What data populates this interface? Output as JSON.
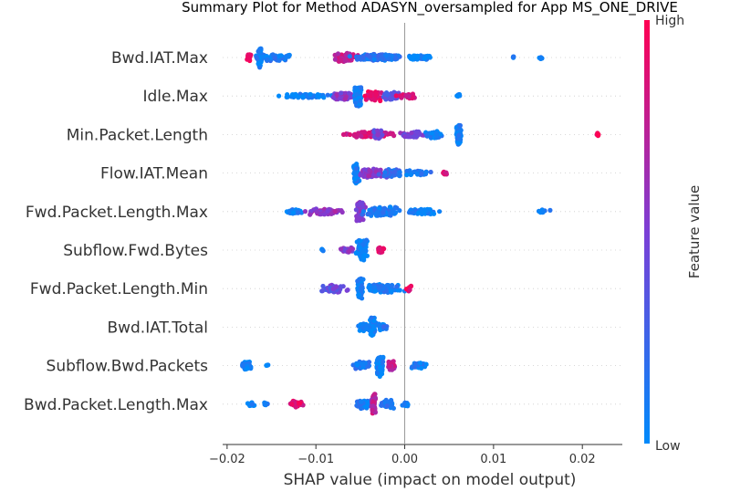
{
  "chart_data": {
    "type": "scatter",
    "subtype": "shap-beeswarm",
    "title": "Summary Plot for Method ADASYN_oversampled for App MS_ONE_DRIVE",
    "xlabel": "SHAP value (impact on model output)",
    "xlim": [
      -0.0205,
      0.0245
    ],
    "xticks": [
      -0.02,
      -0.01,
      0.0,
      0.01,
      0.02
    ],
    "xtick_labels": [
      "−0.02",
      "−0.01",
      "0.00",
      "0.01",
      "0.02"
    ],
    "zero_line": true,
    "grid": false,
    "colorbar": {
      "title": "Feature value",
      "high_label": "High",
      "low_label": "Low",
      "low_color": "#008afb",
      "high_color": "#ff0052"
    },
    "features": [
      {
        "name": "Bwd.IAT.Max",
        "clusters": [
          {
            "x": -0.0163,
            "spread": 0.00025,
            "n": 55,
            "height": 1.0,
            "color": 0.05
          },
          {
            "x": -0.0175,
            "spread": 0.0004,
            "n": 18,
            "height": 0.35,
            "color": 0.95
          },
          {
            "x": -0.0148,
            "spread": 0.0025,
            "n": 60,
            "height": 0.3,
            "color": 0.1
          },
          {
            "x": -0.0065,
            "spread": 0.0018,
            "n": 45,
            "height": 0.4,
            "color": 0.75
          },
          {
            "x": -0.003,
            "spread": 0.0035,
            "n": 140,
            "height": 0.3,
            "color": 0.15
          },
          {
            "x": 0.0015,
            "spread": 0.0018,
            "n": 40,
            "height": 0.22,
            "color": 0.05
          },
          {
            "x": 0.0122,
            "spread": 0.0001,
            "n": 4,
            "height": 0.1,
            "color": 0.05
          },
          {
            "x": 0.0153,
            "spread": 0.0003,
            "n": 7,
            "height": 0.14,
            "color": 0.05
          }
        ]
      },
      {
        "name": "Idle.Max",
        "clusters": [
          {
            "x": -0.0112,
            "spread": 0.0045,
            "n": 70,
            "height": 0.18,
            "color": 0.05
          },
          {
            "x": -0.0068,
            "spread": 0.0018,
            "n": 55,
            "height": 0.4,
            "color": 0.55
          },
          {
            "x": -0.0053,
            "spread": 0.0005,
            "n": 85,
            "height": 1.0,
            "color": 0.05
          },
          {
            "x": -0.0035,
            "spread": 0.0012,
            "n": 40,
            "height": 0.45,
            "color": 0.9
          },
          {
            "x": -0.0015,
            "spread": 0.0016,
            "n": 55,
            "height": 0.4,
            "color": 0.35
          },
          {
            "x": 0.0003,
            "spread": 0.0018,
            "n": 30,
            "height": 0.22,
            "color": 0.85
          },
          {
            "x": 0.006,
            "spread": 0.0003,
            "n": 8,
            "height": 0.2,
            "color": 0.05
          }
        ]
      },
      {
        "name": "Min.Packet.Length",
        "clusters": [
          {
            "x": -0.004,
            "spread": 0.0035,
            "n": 80,
            "height": 0.28,
            "color": 0.85
          },
          {
            "x": -0.003,
            "spread": 0.0007,
            "n": 30,
            "height": 0.5,
            "color": 0.45
          },
          {
            "x": 0.001,
            "spread": 0.0018,
            "n": 50,
            "height": 0.28,
            "color": 0.5
          },
          {
            "x": 0.0033,
            "spread": 0.0012,
            "n": 40,
            "height": 0.35,
            "color": 0.05
          },
          {
            "x": 0.0061,
            "spread": 0.00035,
            "n": 85,
            "height": 1.0,
            "color": 0.05
          },
          {
            "x": 0.0218,
            "spread": 0.00045,
            "n": 8,
            "height": 0.16,
            "color": 0.95
          }
        ]
      },
      {
        "name": "Flow.IAT.Mean",
        "clusters": [
          {
            "x": -0.0055,
            "spread": 0.0004,
            "n": 85,
            "height": 1.0,
            "color": 0.05
          },
          {
            "x": -0.0038,
            "spread": 0.0018,
            "n": 70,
            "height": 0.45,
            "color": 0.55
          },
          {
            "x": -0.0015,
            "spread": 0.0015,
            "n": 45,
            "height": 0.35,
            "color": 0.2
          },
          {
            "x": 0.0015,
            "spread": 0.0018,
            "n": 35,
            "height": 0.24,
            "color": 0.1
          },
          {
            "x": 0.0045,
            "spread": 0.0004,
            "n": 9,
            "height": 0.18,
            "color": 0.92
          }
        ]
      },
      {
        "name": "Fwd.Packet.Length.Max",
        "clusters": [
          {
            "x": -0.0125,
            "spread": 0.0015,
            "n": 35,
            "height": 0.2,
            "color": 0.05
          },
          {
            "x": -0.009,
            "spread": 0.0025,
            "n": 60,
            "height": 0.3,
            "color": 0.6
          },
          {
            "x": -0.005,
            "spread": 0.0006,
            "n": 90,
            "height": 1.0,
            "color": 0.55
          },
          {
            "x": -0.0025,
            "spread": 0.0025,
            "n": 80,
            "height": 0.45,
            "color": 0.1
          },
          {
            "x": 0.002,
            "spread": 0.0022,
            "n": 55,
            "height": 0.25,
            "color": 0.05
          },
          {
            "x": 0.0155,
            "spread": 0.001,
            "n": 12,
            "height": 0.18,
            "color": 0.05
          }
        ]
      },
      {
        "name": "Subflow.Fwd.Bytes",
        "clusters": [
          {
            "x": -0.0093,
            "spread": 0.0002,
            "n": 5,
            "height": 0.12,
            "color": 0.05
          },
          {
            "x": -0.0065,
            "spread": 0.0012,
            "n": 25,
            "height": 0.25,
            "color": 0.55
          },
          {
            "x": -0.0048,
            "spread": 0.0007,
            "n": 95,
            "height": 1.0,
            "color": 0.05
          },
          {
            "x": -0.0028,
            "spread": 0.0007,
            "n": 20,
            "height": 0.3,
            "color": 0.85
          }
        ]
      },
      {
        "name": "Fwd.Packet.Length.Min",
        "clusters": [
          {
            "x": -0.008,
            "spread": 0.0018,
            "n": 50,
            "height": 0.35,
            "color": 0.4
          },
          {
            "x": -0.005,
            "spread": 0.0004,
            "n": 80,
            "height": 1.0,
            "color": 0.05
          },
          {
            "x": -0.0025,
            "spread": 0.0025,
            "n": 90,
            "height": 0.4,
            "color": 0.1
          },
          {
            "x": 0.0005,
            "spread": 0.0004,
            "n": 12,
            "height": 0.25,
            "color": 0.95
          }
        ]
      },
      {
        "name": "Bwd.IAT.Total",
        "clusters": [
          {
            "x": -0.0045,
            "spread": 0.0009,
            "n": 55,
            "height": 0.35,
            "color": 0.05
          },
          {
            "x": -0.0036,
            "spread": 0.0004,
            "n": 65,
            "height": 1.0,
            "color": 0.05
          },
          {
            "x": -0.0025,
            "spread": 0.0008,
            "n": 25,
            "height": 0.35,
            "color": 0.1
          }
        ]
      },
      {
        "name": "Subflow.Bwd.Packets",
        "clusters": [
          {
            "x": -0.0178,
            "spread": 0.0008,
            "n": 35,
            "height": 0.4,
            "color": 0.05
          },
          {
            "x": -0.0155,
            "spread": 0.0002,
            "n": 5,
            "height": 0.12,
            "color": 0.05
          },
          {
            "x": -0.0048,
            "spread": 0.0012,
            "n": 40,
            "height": 0.4,
            "color": 0.1
          },
          {
            "x": -0.0028,
            "spread": 0.0005,
            "n": 95,
            "height": 1.0,
            "color": 0.05
          },
          {
            "x": -0.0015,
            "spread": 0.0007,
            "n": 35,
            "height": 0.45,
            "color": 0.75
          },
          {
            "x": 0.0015,
            "spread": 0.0012,
            "n": 35,
            "height": 0.3,
            "color": 0.08
          }
        ]
      },
      {
        "name": "Bwd.Packet.Length.Max",
        "clusters": [
          {
            "x": -0.0172,
            "spread": 0.0005,
            "n": 12,
            "height": 0.2,
            "color": 0.05
          },
          {
            "x": -0.0155,
            "spread": 0.0006,
            "n": 8,
            "height": 0.15,
            "color": 0.05
          },
          {
            "x": -0.0123,
            "spread": 0.0012,
            "n": 30,
            "height": 0.3,
            "color": 0.9
          },
          {
            "x": -0.0045,
            "spread": 0.0012,
            "n": 50,
            "height": 0.4,
            "color": 0.1
          },
          {
            "x": -0.0035,
            "spread": 0.0003,
            "n": 75,
            "height": 1.0,
            "color": 0.75
          },
          {
            "x": -0.002,
            "spread": 0.0012,
            "n": 40,
            "height": 0.4,
            "color": 0.1
          },
          {
            "x": 0.0002,
            "spread": 0.0005,
            "n": 15,
            "height": 0.2,
            "color": 0.05
          }
        ]
      }
    ]
  }
}
